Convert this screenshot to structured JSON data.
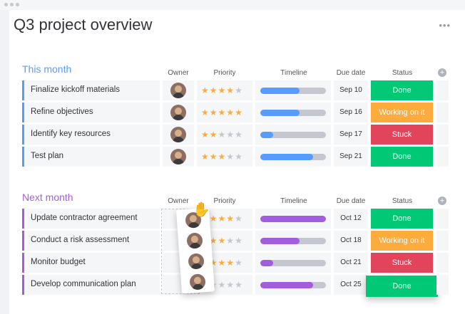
{
  "window": {
    "dots": 3
  },
  "board": {
    "title": "Q3 project overview",
    "menu": "•••"
  },
  "columns": {
    "owner": "Owner",
    "priority": "Priority",
    "timeline": "Timeline",
    "due": "Due date",
    "status": "Status",
    "add": "+"
  },
  "colors": {
    "blue": "#579bfc",
    "purple": "#a25ddc",
    "done": "#00c875",
    "working": "#fdab3d",
    "stuck": "#e2445c"
  },
  "groups": [
    {
      "title": "This month",
      "color": "#579bfc",
      "rows": [
        {
          "name": "Finalize kickoff materials",
          "rating": 4,
          "progress": 0.6,
          "due": "Sep 10",
          "status": "Done",
          "status_color": "#00c875"
        },
        {
          "name": "Refine objectives",
          "rating": 5,
          "progress": 0.6,
          "due": "Sep 16",
          "status": "Working on it",
          "status_color": "#fdab3d"
        },
        {
          "name": "Identify key resources",
          "rating": 2,
          "progress": 0.2,
          "due": "Sep 17",
          "status": "Stuck",
          "status_color": "#e2445c"
        },
        {
          "name": "Test plan",
          "rating": 3,
          "progress": 0.8,
          "due": "Sep 21",
          "status": "Done",
          "status_color": "#00c875"
        }
      ]
    },
    {
      "title": "Next month",
      "color": "#a25ddc",
      "rows": [
        {
          "name": "Update contractor agreement",
          "rating": 4,
          "progress": 1.0,
          "due": "Oct 12",
          "status": "Done",
          "status_color": "#00c875"
        },
        {
          "name": "Conduct a risk assessment",
          "rating": 3,
          "progress": 0.6,
          "due": "Oct 18",
          "status": "Working on it",
          "status_color": "#fdab3d"
        },
        {
          "name": "Monitor budget",
          "rating": 4,
          "progress": 0.2,
          "due": "Oct 21",
          "status": "Stuck",
          "status_color": "#e2445c"
        },
        {
          "name": "Develop communication plan",
          "rating": 1,
          "progress": 0.8,
          "due": "Oct 25",
          "status": "Done",
          "status_color": "#00c875"
        }
      ]
    }
  ],
  "star": "★"
}
